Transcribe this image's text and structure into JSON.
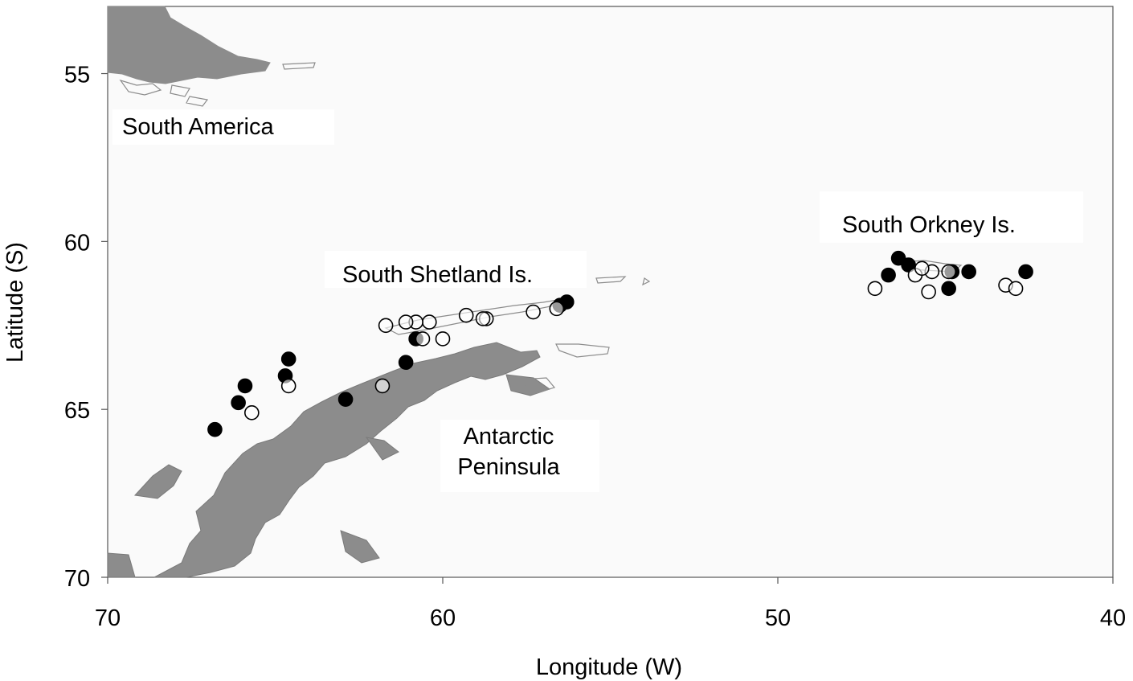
{
  "chart_data": {
    "type": "scatter",
    "xlabel": "Longitude (W)",
    "ylabel": "Latitude (S)",
    "xlim": [
      70,
      40
    ],
    "ylim": [
      53,
      70
    ],
    "xticks": [
      "70",
      "60",
      "50",
      "40"
    ],
    "yticks": [
      "55",
      "60",
      "65",
      "70"
    ],
    "region_labels": [
      "South America",
      "South Shetland Is.",
      "Antarctic Peninsula",
      "South Orkney Is."
    ],
    "series": [
      {
        "marker": "filled-circle",
        "color": "#000000",
        "points": [
          [
            56.3,
            61.8
          ],
          [
            56.5,
            61.9
          ],
          [
            60.8,
            62.9
          ],
          [
            61.1,
            63.6
          ],
          [
            64.6,
            63.5
          ],
          [
            64.7,
            64.0
          ],
          [
            62.9,
            64.7
          ],
          [
            65.9,
            64.3
          ],
          [
            66.1,
            64.8
          ],
          [
            66.8,
            65.6
          ],
          [
            46.4,
            60.5
          ],
          [
            46.1,
            60.7
          ],
          [
            46.7,
            61.0
          ],
          [
            44.8,
            60.9
          ],
          [
            44.3,
            60.9
          ],
          [
            44.9,
            61.4
          ],
          [
            42.6,
            60.9
          ]
        ]
      },
      {
        "marker": "open-circle",
        "color": "#000000",
        "points": [
          [
            56.6,
            62.0
          ],
          [
            57.3,
            62.1
          ],
          [
            58.7,
            62.3
          ],
          [
            58.8,
            62.3
          ],
          [
            59.3,
            62.2
          ],
          [
            60.4,
            62.4
          ],
          [
            60.8,
            62.4
          ],
          [
            61.1,
            62.4
          ],
          [
            61.7,
            62.5
          ],
          [
            60.6,
            62.9
          ],
          [
            60.0,
            62.9
          ],
          [
            64.6,
            64.3
          ],
          [
            61.8,
            64.3
          ],
          [
            65.7,
            65.1
          ],
          [
            47.1,
            61.4
          ],
          [
            45.9,
            61.0
          ],
          [
            45.4,
            60.9
          ],
          [
            45.7,
            60.8
          ],
          [
            45.5,
            61.5
          ],
          [
            44.9,
            60.9
          ],
          [
            43.2,
            61.3
          ],
          [
            42.9,
            61.4
          ]
        ]
      }
    ],
    "colors": {
      "land": "#8c8c8c",
      "island_outline": "#8c8c8c",
      "background": "#fafafa",
      "frame": "#555555"
    }
  }
}
